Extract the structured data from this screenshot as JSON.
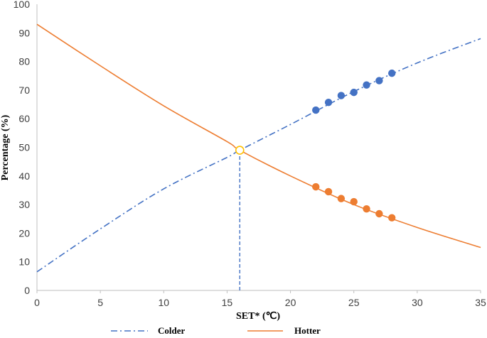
{
  "chart_data": {
    "type": "line",
    "title": "",
    "xlabel": "SET* (℃)",
    "ylabel": "Percentage (%)",
    "xlim": [
      0,
      35
    ],
    "ylim": [
      0,
      100
    ],
    "x_ticks": [
      0,
      5,
      10,
      15,
      20,
      25,
      30,
      35
    ],
    "y_ticks": [
      0,
      10,
      20,
      30,
      40,
      50,
      60,
      70,
      80,
      90,
      100
    ],
    "grid": false,
    "legend_position": "bottom",
    "series": [
      {
        "name": "Colder",
        "style": "dash-dot fitted curve",
        "color": "#4472C4",
        "x": [
          0,
          5,
          10,
          15,
          16,
          20,
          25,
          30,
          35
        ],
        "y": [
          6.5,
          21.5,
          35.5,
          46.5,
          49,
          58,
          69.5,
          79.5,
          88
        ],
        "points": {
          "x": [
            22,
            23,
            24,
            25,
            26,
            27,
            28
          ],
          "y": [
            63,
            65.7,
            68.1,
            69.2,
            71.8,
            73.3,
            75.9
          ]
        }
      },
      {
        "name": "Hotter",
        "style": "solid fitted curve",
        "color": "#ED7D31",
        "x": [
          0,
          5,
          10,
          15,
          16,
          20,
          25,
          30,
          35
        ],
        "y": [
          93,
          78.5,
          64.5,
          52,
          49,
          40,
          30,
          22,
          15
        ],
        "points": {
          "x": [
            22,
            23,
            24,
            25,
            26,
            27,
            28
          ],
          "y": [
            36.2,
            34.5,
            32.1,
            31,
            28.5,
            26.8,
            25.4
          ]
        }
      }
    ],
    "annotations": [
      {
        "type": "intersection-marker",
        "x": 16,
        "y": 49,
        "color": "#FFC000"
      },
      {
        "type": "vertical-dashed-line",
        "x": 16,
        "from_y": 0,
        "to_y": 49,
        "color": "#4472C4"
      }
    ]
  }
}
